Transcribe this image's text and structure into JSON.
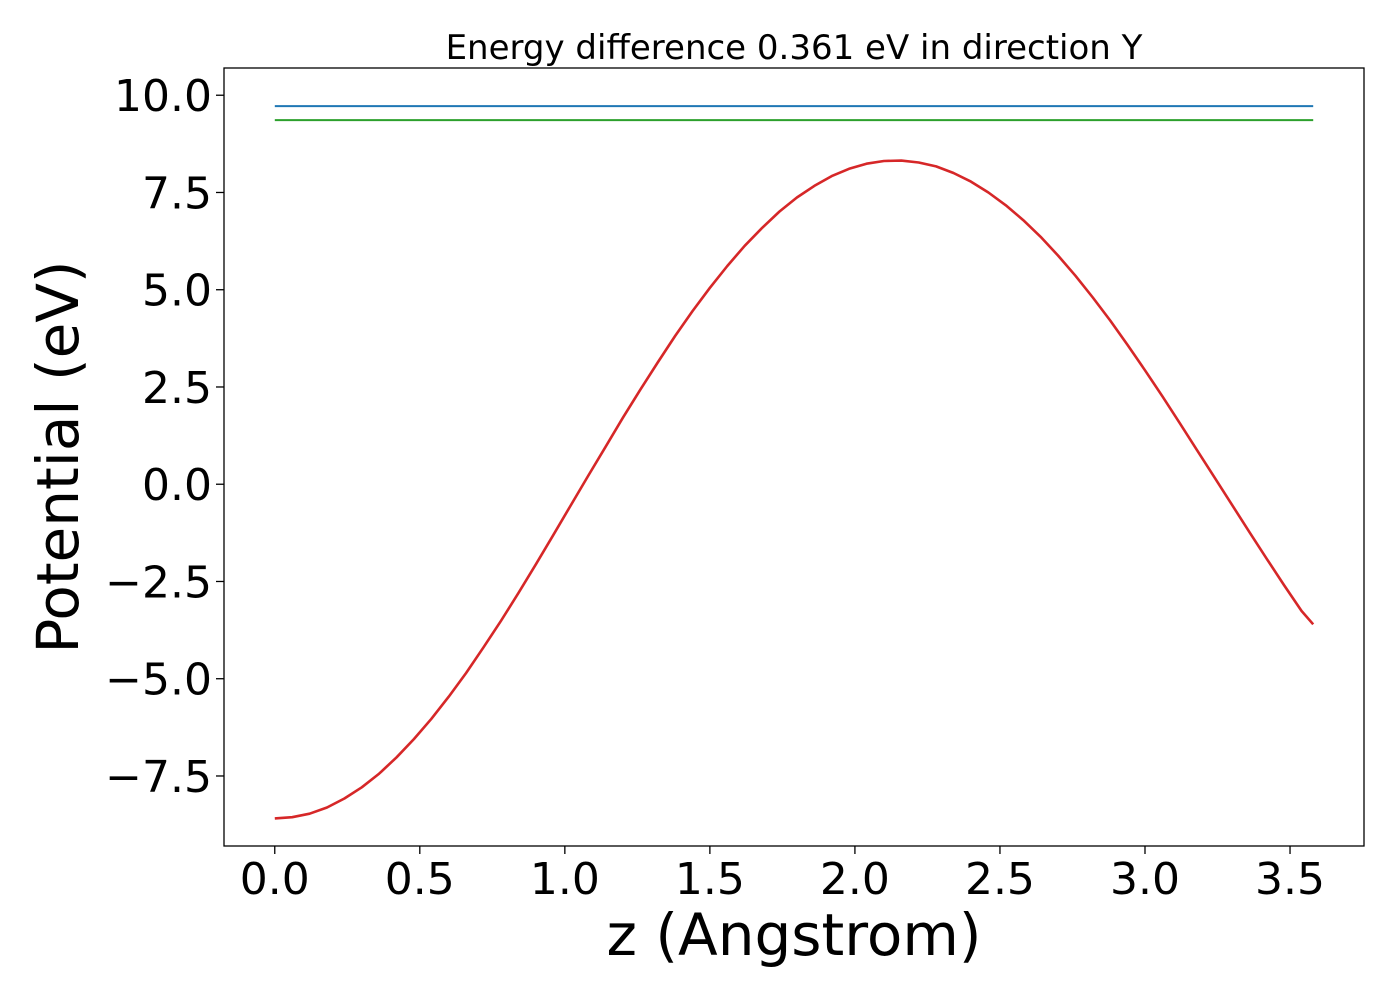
{
  "chart_data": {
    "type": "line",
    "title": "Energy difference 0.361 eV in direction Y",
    "xlabel": "z (Angstrom)",
    "ylabel": "Potential (eV)",
    "xlim": [
      -0.175,
      3.755
    ],
    "ylim": [
      -9.3,
      10.7
    ],
    "x_ticks": [
      0.0,
      0.5,
      1.0,
      1.5,
      2.0,
      2.5,
      3.0,
      3.5
    ],
    "x_tick_labels": [
      "0.0",
      "0.5",
      "1.0",
      "1.5",
      "2.0",
      "2.5",
      "3.0",
      "3.5"
    ],
    "y_ticks": [
      -7.5,
      -5.0,
      -2.5,
      0.0,
      2.5,
      5.0,
      7.5,
      10.0
    ],
    "y_tick_labels": [
      "−7.5",
      "−5.0",
      "−2.5",
      "0.0",
      "2.5",
      "5.0",
      "7.5",
      "10.0"
    ],
    "grid": false,
    "series": [
      {
        "color": "#d62728",
        "x": [
          0.0,
          0.06,
          0.12,
          0.18,
          0.24,
          0.3,
          0.36,
          0.42,
          0.48,
          0.54,
          0.6,
          0.66,
          0.72,
          0.78,
          0.84,
          0.9,
          0.96,
          1.02,
          1.08,
          1.14,
          1.2,
          1.26,
          1.32,
          1.38,
          1.44,
          1.5,
          1.56,
          1.62,
          1.68,
          1.74,
          1.8,
          1.86,
          1.92,
          1.98,
          2.04,
          2.1,
          2.16,
          2.22,
          2.28,
          2.34,
          2.4,
          2.46,
          2.52,
          2.58,
          2.64,
          2.7,
          2.76,
          2.82,
          2.88,
          2.94,
          3.0,
          3.06,
          3.12,
          3.18,
          3.24,
          3.3,
          3.36,
          3.42,
          3.48,
          3.54,
          3.58
        ],
        "y": [
          -8.59,
          -8.56,
          -8.47,
          -8.31,
          -8.08,
          -7.79,
          -7.44,
          -7.02,
          -6.55,
          -6.03,
          -5.46,
          -4.85,
          -4.19,
          -3.51,
          -2.8,
          -2.06,
          -1.31,
          -0.55,
          0.21,
          0.96,
          1.71,
          2.43,
          3.13,
          3.81,
          4.45,
          5.05,
          5.61,
          6.13,
          6.59,
          7.01,
          7.37,
          7.67,
          7.92,
          8.11,
          8.24,
          8.31,
          8.32,
          8.27,
          8.17,
          8.0,
          7.78,
          7.5,
          7.17,
          6.79,
          6.36,
          5.88,
          5.36,
          4.8,
          4.21,
          3.58,
          2.93,
          2.26,
          1.57,
          0.87,
          0.17,
          -0.53,
          -1.23,
          -1.92,
          -2.6,
          -3.26,
          -3.6
        ]
      },
      {
        "color": "#1f77b4",
        "x": [
          0.0,
          3.58
        ],
        "y": [
          9.72,
          9.72
        ]
      },
      {
        "color": "#2ca02c",
        "x": [
          0.0,
          3.58
        ],
        "y": [
          9.36,
          9.36
        ]
      }
    ]
  }
}
